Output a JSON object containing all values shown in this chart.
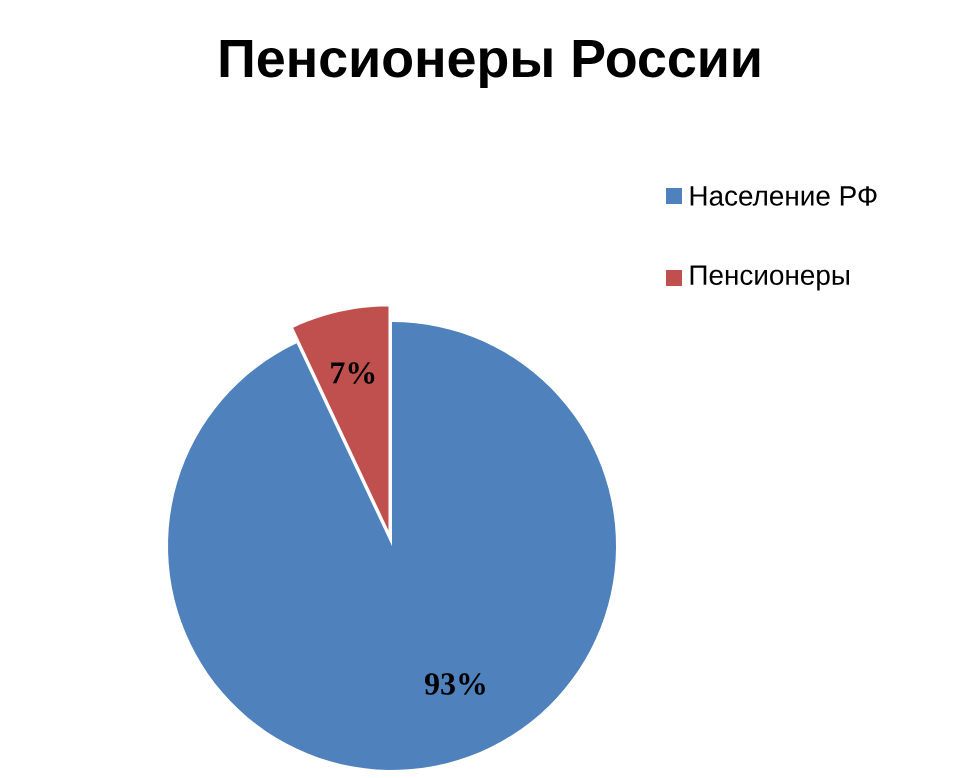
{
  "chart_data": {
    "type": "pie",
    "title": "Пенсионеры России",
    "categories": [
      "Население РФ",
      "Пенсионеры"
    ],
    "values": [
      93,
      7
    ],
    "value_labels": [
      "93%",
      "7%"
    ],
    "colors": [
      "#4f81bd",
      "#c0504d"
    ],
    "legend": "right"
  }
}
